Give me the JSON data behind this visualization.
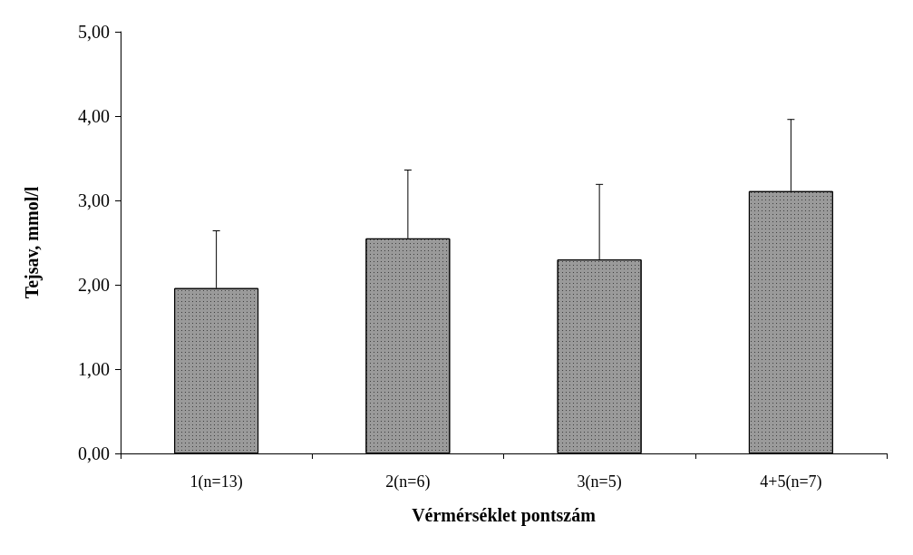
{
  "chart_data": {
    "type": "bar",
    "xlabel": "Vérmérséklet pontszám",
    "ylabel": "Tejsav, mmol/l",
    "categories": [
      "1(n=13)",
      "2(n=6)",
      "3(n=5)",
      "4+5(n=7)"
    ],
    "values": [
      1.96,
      2.55,
      2.3,
      3.11
    ],
    "errors": [
      0.68,
      0.81,
      0.89,
      0.85
    ],
    "color": "#9a9a9a",
    "ylim": [
      0,
      5
    ],
    "yticks": [
      {
        "value": 0,
        "label": "0,00"
      },
      {
        "value": 1,
        "label": "1,00"
      },
      {
        "value": 2,
        "label": "2,00"
      },
      {
        "value": 3,
        "label": "3,00"
      },
      {
        "value": 4,
        "label": "4,00"
      },
      {
        "value": 5,
        "label": "5,00"
      }
    ],
    "grid": false
  }
}
